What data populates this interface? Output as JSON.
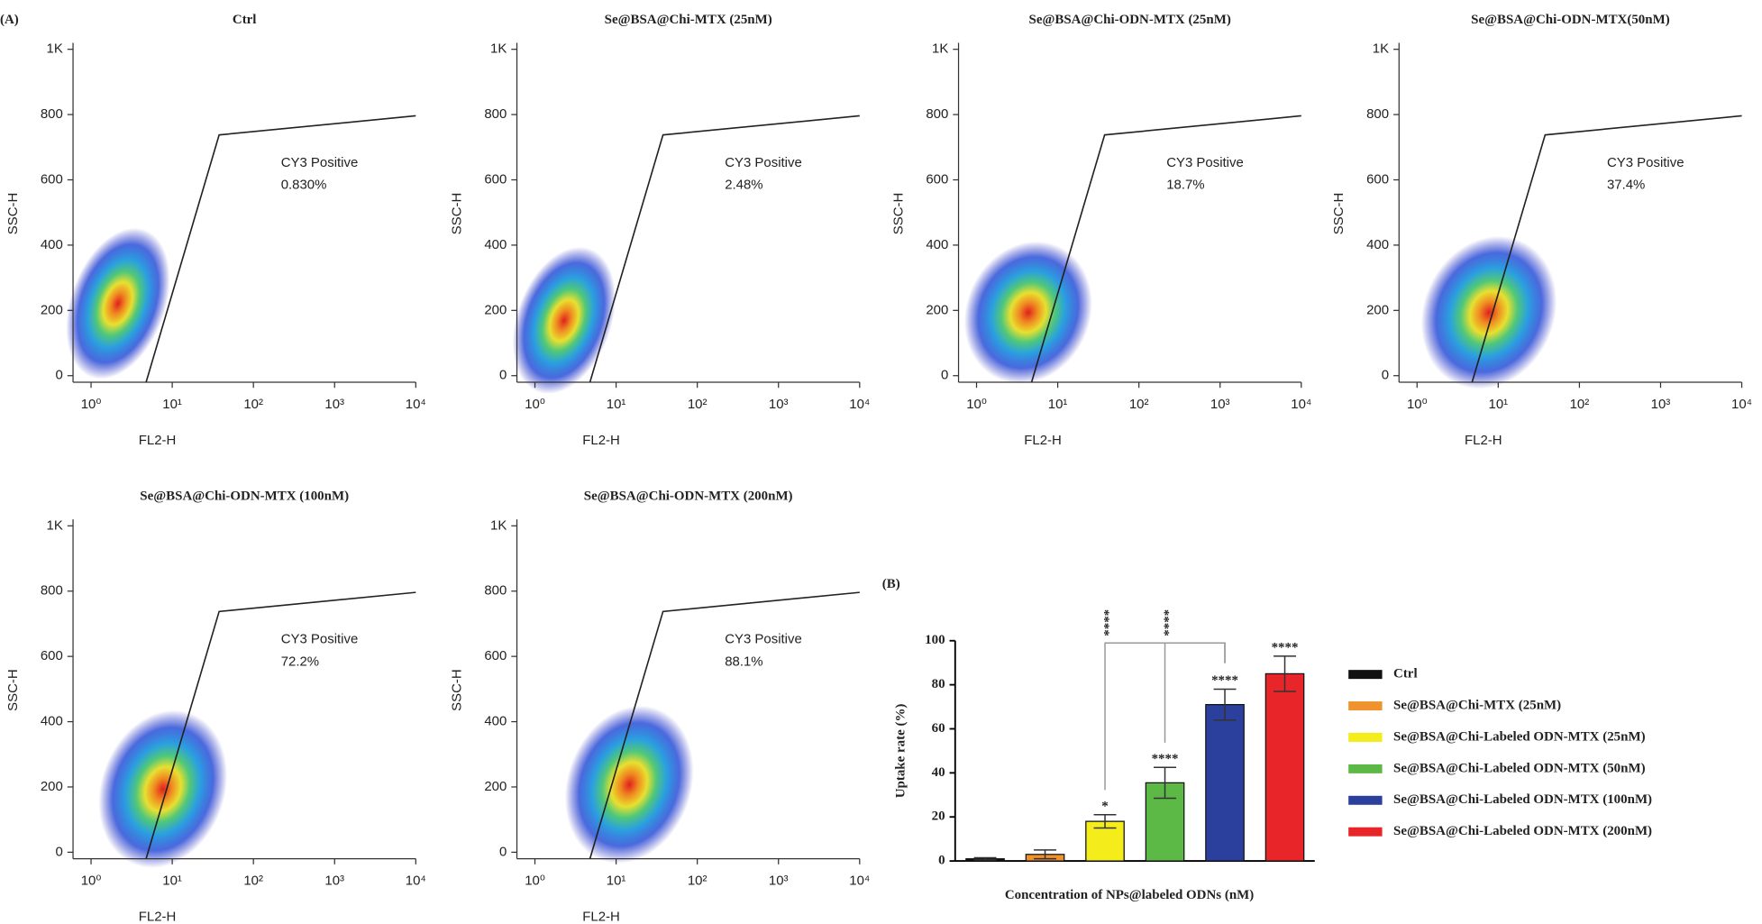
{
  "chart_data": [
    {
      "type": "density",
      "panel_label": "(A)",
      "title": "Ctrl",
      "xlabel": "FL2-H",
      "ylabel": "SSC-H",
      "xscale": "log",
      "xlim": [
        0.6,
        10000
      ],
      "xticks": [
        {
          "value": 1,
          "label": "10⁰"
        },
        {
          "value": 10,
          "label": "10¹"
        },
        {
          "value": 100,
          "label": "10²"
        },
        {
          "value": 1000,
          "label": "10³"
        },
        {
          "value": 10000,
          "label": "10⁴"
        }
      ],
      "ylim": [
        -20,
        1020
      ],
      "yticks": [
        0,
        200,
        400,
        600,
        800,
        {
          "value": 1000,
          "label": "1K"
        }
      ],
      "annotations": [
        "CY3 Positive",
        "0.830%"
      ]
    },
    {
      "type": "density",
      "title": "Se@BSA@Chi-MTX (25nM)",
      "xlabel": "FL2-H",
      "ylabel": "SSC-H",
      "xscale": "log",
      "xlim": [
        0.6,
        10000
      ],
      "xticks": [
        {
          "value": 1,
          "label": "10⁰"
        },
        {
          "value": 10,
          "label": "10¹"
        },
        {
          "value": 100,
          "label": "10²"
        },
        {
          "value": 1000,
          "label": "10³"
        },
        {
          "value": 10000,
          "label": "10⁴"
        }
      ],
      "ylim": [
        -20,
        1020
      ],
      "yticks": [
        0,
        200,
        400,
        600,
        800,
        {
          "value": 1000,
          "label": "1K"
        }
      ],
      "annotations": [
        "CY3 Positive",
        "2.48%"
      ]
    },
    {
      "type": "density",
      "title": "Se@BSA@Chi-ODN-MTX (25nM)",
      "xlabel": "FL2-H",
      "ylabel": "SSC-H",
      "xscale": "log",
      "xlim": [
        0.6,
        10000
      ],
      "xticks": [
        {
          "value": 1,
          "label": "10⁰"
        },
        {
          "value": 10,
          "label": "10¹"
        },
        {
          "value": 100,
          "label": "10²"
        },
        {
          "value": 1000,
          "label": "10³"
        },
        {
          "value": 10000,
          "label": "10⁴"
        }
      ],
      "ylim": [
        -20,
        1020
      ],
      "yticks": [
        0,
        200,
        400,
        600,
        800,
        {
          "value": 1000,
          "label": "1K"
        }
      ],
      "annotations": [
        "CY3 Positive",
        "18.7%"
      ]
    },
    {
      "type": "density",
      "title": "Se@BSA@Chi-ODN-MTX(50nM)",
      "xlabel": "FL2-H",
      "ylabel": "SSC-H",
      "xscale": "log",
      "xlim": [
        0.6,
        10000
      ],
      "xticks": [
        {
          "value": 1,
          "label": "10⁰"
        },
        {
          "value": 10,
          "label": "10¹"
        },
        {
          "value": 100,
          "label": "10²"
        },
        {
          "value": 1000,
          "label": "10³"
        },
        {
          "value": 10000,
          "label": "10⁴"
        }
      ],
      "ylim": [
        -20,
        1020
      ],
      "yticks": [
        0,
        200,
        400,
        600,
        800,
        {
          "value": 1000,
          "label": "1K"
        }
      ],
      "annotations": [
        "CY3 Positive",
        "37.4%"
      ]
    },
    {
      "type": "density",
      "title": "Se@BSA@Chi-ODN-MTX (100nM)",
      "xlabel": "FL2-H",
      "ylabel": "SSC-H",
      "xscale": "log",
      "xlim": [
        0.6,
        10000
      ],
      "xticks": [
        {
          "value": 1,
          "label": "10⁰"
        },
        {
          "value": 10,
          "label": "10¹"
        },
        {
          "value": 100,
          "label": "10²"
        },
        {
          "value": 1000,
          "label": "10³"
        },
        {
          "value": 10000,
          "label": "10⁴"
        }
      ],
      "ylim": [
        -20,
        1020
      ],
      "yticks": [
        0,
        200,
        400,
        600,
        800,
        {
          "value": 1000,
          "label": "1K"
        }
      ],
      "annotations": [
        "CY3 Positive",
        "72.2%"
      ]
    },
    {
      "type": "density",
      "title": "Se@BSA@Chi-ODN-MTX (200nM)",
      "xlabel": "FL2-H",
      "ylabel": "SSC-H",
      "xscale": "log",
      "xlim": [
        0.6,
        10000
      ],
      "xticks": [
        {
          "value": 1,
          "label": "10⁰"
        },
        {
          "value": 10,
          "label": "10¹"
        },
        {
          "value": 100,
          "label": "10²"
        },
        {
          "value": 1000,
          "label": "10³"
        },
        {
          "value": 10000,
          "label": "10⁴"
        }
      ],
      "ylim": [
        -20,
        1020
      ],
      "yticks": [
        0,
        200,
        400,
        600,
        800,
        {
          "value": 1000,
          "label": "1K"
        }
      ],
      "annotations": [
        "CY3 Positive",
        "88.1%"
      ]
    },
    {
      "type": "bar",
      "panel_label": "(B)",
      "xlabel": "Concentration of NPs@labeled ODNs (nM)",
      "ylabel": "Uptake rate (%)",
      "categories": [
        "Ctrl",
        "Se@BSA@Chi-MTX (25nM)",
        "Se@BSA@Chi-Labeled ODN-MTX (25nM)",
        "Se@BSA@Chi-Labeled ODN-MTX (50nM)",
        "Se@BSA@Chi-Labeled ODN-MTX (100nM)",
        "Se@BSA@Chi-Labeled ODN-MTX (200nM)"
      ],
      "values": [
        1,
        3,
        18,
        35.5,
        71,
        85
      ],
      "errors": [
        0.5,
        2,
        3,
        7,
        7,
        8
      ],
      "colors": [
        "#111111",
        "#f0922e",
        "#f5ec1c",
        "#5cb946",
        "#2b3f9c",
        "#e8262a"
      ],
      "significance": [
        null,
        null,
        "*",
        "****",
        "****",
        "****"
      ],
      "comparisons": [
        {
          "from": 2,
          "to": 4,
          "label": "****"
        },
        {
          "from": 3,
          "to": 4,
          "label": "****"
        }
      ],
      "ylim": [
        0,
        100
      ],
      "yticks": [
        0,
        20,
        40,
        60,
        80,
        100
      ],
      "legend": "right"
    }
  ]
}
